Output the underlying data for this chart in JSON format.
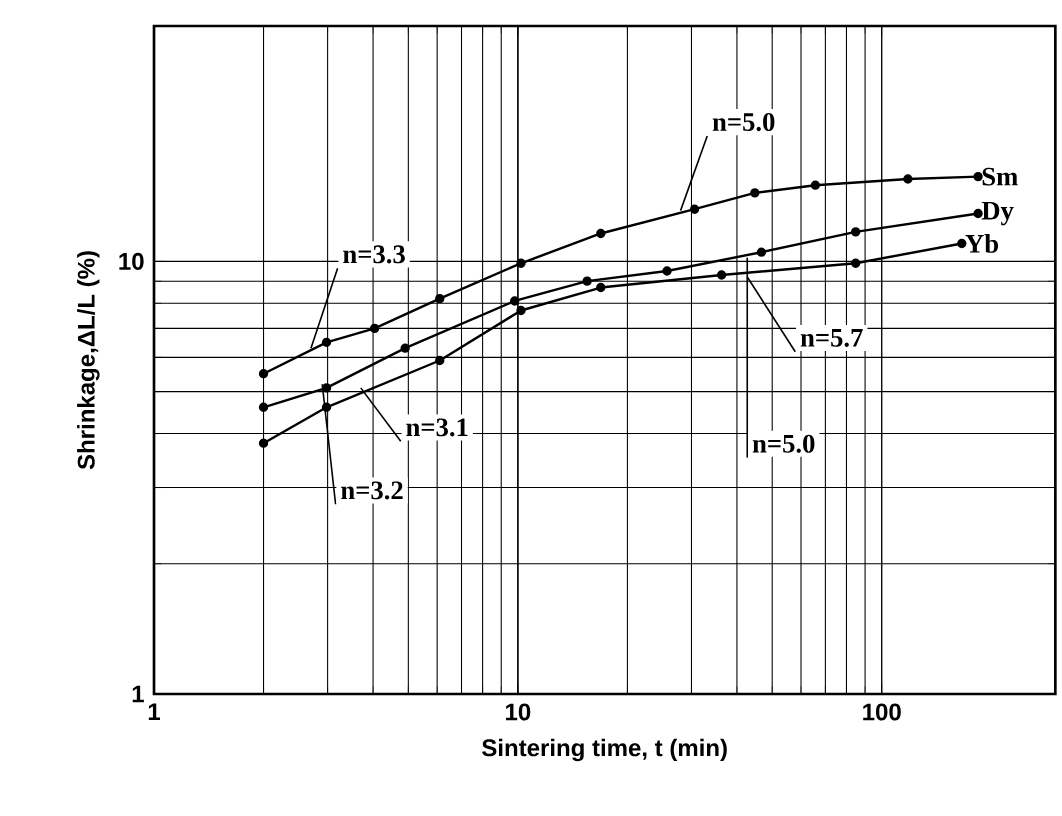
{
  "chart_data": {
    "type": "line",
    "xlabel": "Sintering time, t (min)",
    "ylabel": "Shrinkage,ΔL/L (%)",
    "log": "xy",
    "xlim": [
      1,
      300
    ],
    "ylim": [
      1,
      35
    ],
    "xticks": [
      1,
      10,
      100
    ],
    "yticks": [
      1,
      10
    ],
    "grid": true,
    "marker": "circle",
    "line_style": "solid",
    "series": [
      {
        "name": "Sm",
        "color": "#000000",
        "x": [
          2.0,
          2.98,
          4.04,
          6.1,
          10.2,
          16.9,
          30.6,
          44.8,
          65.7,
          118,
          184
        ],
        "values": [
          5.5,
          6.5,
          7.0,
          8.2,
          9.9,
          11.6,
          13.2,
          14.4,
          15.0,
          15.5,
          15.7
        ]
      },
      {
        "name": "Dy",
        "color": "#000000",
        "x": [
          2.0,
          2.98,
          4.9,
          9.8,
          15.5,
          25.7,
          46.7,
          84.8,
          184
        ],
        "values": [
          4.6,
          5.1,
          6.3,
          8.1,
          9.0,
          9.5,
          10.5,
          11.7,
          12.9
        ]
      },
      {
        "name": "Yb",
        "color": "#000000",
        "x": [
          2.0,
          2.98,
          6.1,
          10.2,
          16.9,
          36.3,
          84.8,
          166
        ],
        "values": [
          3.8,
          4.6,
          5.9,
          7.7,
          8.7,
          9.3,
          9.9,
          11.0
        ]
      }
    ],
    "annotations": [
      {
        "text": "n=5.0",
        "x": 28,
        "y": 13.1
      },
      {
        "text": "n=3.3",
        "x": 2.7,
        "y": 6.3
      },
      {
        "text": "n=5.7",
        "x": 42.7,
        "y": 9.2
      },
      {
        "text": "n=5.0",
        "x": 42.7,
        "y": 10.2
      },
      {
        "text": "n=3.1",
        "x": 3.7,
        "y": 5.1
      },
      {
        "text": "n=3.2",
        "x": 2.9,
        "y": 5.2
      }
    ]
  }
}
